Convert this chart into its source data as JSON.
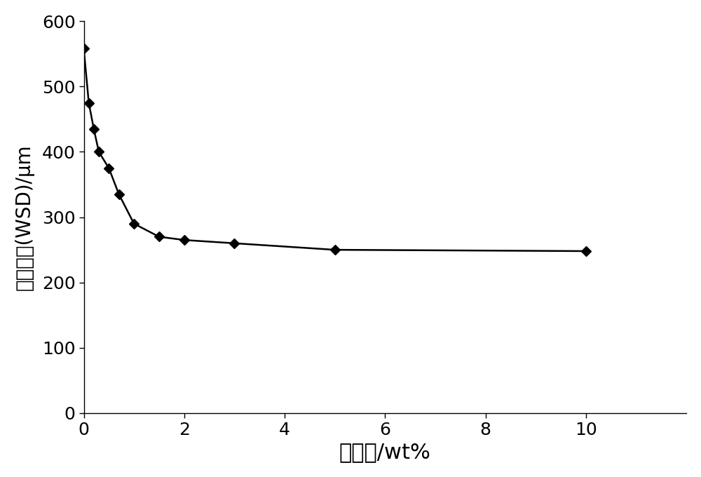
{
  "x": [
    0,
    0.1,
    0.2,
    0.3,
    0.5,
    0.7,
    1.0,
    1.5,
    2.0,
    3.0,
    5.0,
    10.0
  ],
  "y": [
    558,
    475,
    435,
    400,
    375,
    335,
    290,
    270,
    265,
    260,
    250,
    248
  ],
  "xlabel": "添加量/wt%",
  "ylabel": "磨班直径(WSD)/μm",
  "xlim": [
    0,
    12
  ],
  "ylim": [
    0,
    600
  ],
  "xticks": [
    0,
    2,
    4,
    6,
    8,
    10
  ],
  "yticks": [
    0,
    100,
    200,
    300,
    400,
    500,
    600
  ],
  "line_color": "#000000",
  "marker": "D",
  "marker_size": 7,
  "line_width": 1.8,
  "xlabel_fontsize": 22,
  "ylabel_fontsize": 20,
  "tick_fontsize": 18,
  "background_color": "#ffffff"
}
